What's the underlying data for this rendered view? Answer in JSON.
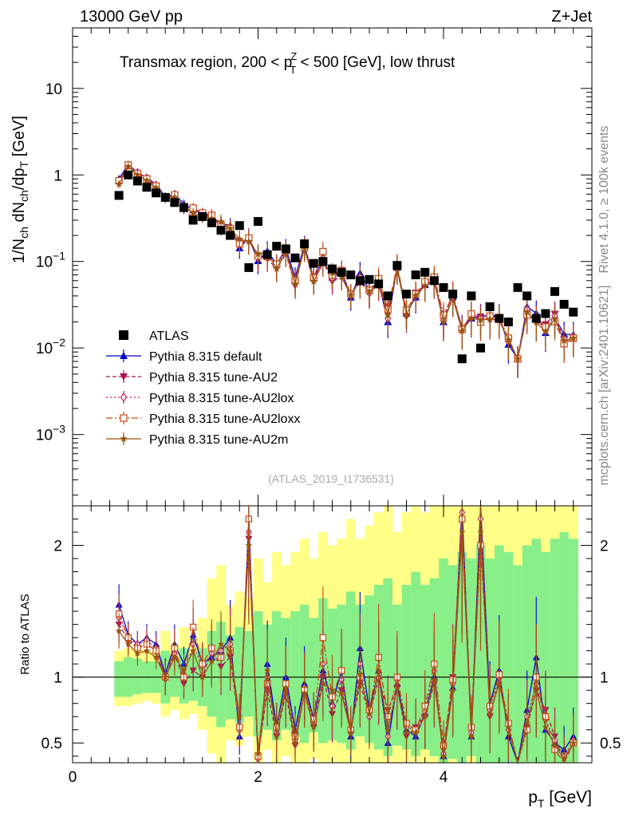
{
  "header": {
    "left": "13000 GeV pp",
    "right": "Z+Jet"
  },
  "side_labels": {
    "rivet": "Rivet 4.1.0, ≥ 100k events",
    "mcplots": "mcplots.cern.ch [arXiv:2401.10621]"
  },
  "chart_data": {
    "type": "line",
    "title": "Transmax region, 200 < pTZ < 500 [GeV], low thrust",
    "title_parts": {
      "pre": "Transmax region, 200 < p",
      "sup": "Z",
      "sub": "T",
      "post": " < 500 [GeV], low thrust"
    },
    "analysis_label": "(ATLAS_2019_I1736531)",
    "xlabel": "pT [GeV]",
    "xlabel_parts": {
      "main": "p",
      "sub": "T",
      "unit": " [GeV]"
    },
    "ylabel": "1/Nch dNch/dpT [GeV]",
    "ylabel_parts": {
      "a": "1/N",
      "a_sub": "ch",
      "b": " dN",
      "b_sub": "ch",
      "c": "/dp",
      "c_sub": "T",
      "unit": " [GeV]"
    },
    "ratio_ylabel": "Ratio to ATLAS",
    "xlim": [
      0,
      5.6
    ],
    "ylim": [
      0.00015,
      50
    ],
    "ratio_ylim": [
      0.35,
      2.3
    ],
    "xticks": [
      0,
      2,
      4
    ],
    "xtick_labels": [
      "0",
      "2",
      "4"
    ],
    "yticks_main": [
      {
        "value": 10,
        "label": "10",
        "exp": ""
      },
      {
        "value": 1,
        "label": "1",
        "exp": ""
      },
      {
        "value": 0.1,
        "label": "10",
        "exp": "−1"
      },
      {
        "value": 0.01,
        "label": "10",
        "exp": "−2"
      },
      {
        "value": 0.001,
        "label": "10",
        "exp": "−3"
      }
    ],
    "yticks_ratio": [
      {
        "value": 2,
        "label": "2"
      },
      {
        "value": 1,
        "label": "1"
      },
      {
        "value": 0.5,
        "label": "0.5"
      }
    ],
    "x": [
      0.5,
      0.6,
      0.7,
      0.8,
      0.9,
      1.0,
      1.1,
      1.2,
      1.3,
      1.4,
      1.5,
      1.6,
      1.7,
      1.8,
      1.9,
      2.0,
      2.1,
      2.2,
      2.3,
      2.4,
      2.5,
      2.6,
      2.7,
      2.8,
      2.9,
      3.0,
      3.1,
      3.2,
      3.3,
      3.4,
      3.5,
      3.6,
      3.7,
      3.8,
      3.9,
      4.0,
      4.1,
      4.2,
      4.3,
      4.4,
      4.5,
      4.6,
      4.7,
      4.8,
      4.9,
      5.0,
      5.1,
      5.2,
      5.3,
      5.4
    ],
    "data": {
      "name": "ATLAS",
      "values": [
        0.58,
        1.0,
        0.85,
        0.72,
        0.62,
        0.55,
        0.48,
        0.42,
        0.3,
        0.33,
        0.28,
        0.23,
        0.2,
        0.26,
        0.085,
        0.29,
        0.12,
        0.15,
        0.14,
        0.11,
        0.16,
        0.095,
        0.1,
        0.082,
        0.075,
        0.07,
        0.06,
        0.062,
        0.055,
        0.04,
        0.09,
        0.042,
        0.07,
        0.075,
        0.06,
        0.05,
        0.042,
        0.0075,
        0.04,
        0.01,
        0.03,
        0.022,
        0.02,
        0.05,
        0.04,
        0.022,
        0.025,
        0.045,
        0.032,
        0.026
      ]
    },
    "ratio_band": {
      "green_lo": [
        0.85,
        0.85,
        0.87,
        0.88,
        0.88,
        0.8,
        0.85,
        0.8,
        0.82,
        0.78,
        0.7,
        0.62,
        0.68,
        0.65,
        0.7,
        0.55,
        0.6,
        0.52,
        0.6,
        0.55,
        0.5,
        0.58,
        0.5,
        0.52,
        0.5,
        0.45,
        0.55,
        0.5,
        0.45,
        0.4,
        0.48,
        0.45,
        0.4,
        0.45,
        0.4,
        0.35,
        0.38,
        0.35,
        0.4,
        0.35,
        0.35,
        0.35,
        0.35,
        0.35,
        0.35,
        0.35,
        0.35,
        0.35,
        0.35,
        0.35
      ],
      "green_hi": [
        1.12,
        1.15,
        1.14,
        1.12,
        1.12,
        1.2,
        1.15,
        1.22,
        1.18,
        1.22,
        1.35,
        1.42,
        1.32,
        1.38,
        1.35,
        1.5,
        1.4,
        1.5,
        1.45,
        1.5,
        1.55,
        1.45,
        1.6,
        1.52,
        1.55,
        1.65,
        1.55,
        1.62,
        1.7,
        1.75,
        1.55,
        1.7,
        1.8,
        1.7,
        1.75,
        1.9,
        1.85,
        1.95,
        1.9,
        2.0,
        1.9,
        2.0,
        1.95,
        1.85,
        2.0,
        2.05,
        1.95,
        2.05,
        2.1,
        2.05
      ],
      "yellow_lo": [
        0.78,
        0.78,
        0.8,
        0.82,
        0.8,
        0.7,
        0.75,
        0.68,
        0.72,
        0.6,
        0.42,
        0.35,
        0.52,
        0.48,
        0.55,
        0.35,
        0.45,
        0.35,
        0.4,
        0.35,
        0.35,
        0.38,
        0.35,
        0.35,
        0.35,
        0.35,
        0.35,
        0.35,
        0.35,
        0.35,
        0.35,
        0.35,
        0.35,
        0.35,
        0.35,
        0.35,
        0.35,
        0.35,
        0.35,
        0.35,
        0.35,
        0.35,
        0.35,
        0.35,
        0.35,
        0.35,
        0.35,
        0.35,
        0.35,
        0.35
      ],
      "yellow_hi": [
        1.2,
        1.22,
        1.22,
        1.2,
        1.2,
        1.35,
        1.25,
        1.38,
        1.3,
        1.45,
        1.75,
        1.85,
        1.55,
        1.65,
        1.6,
        1.9,
        1.72,
        1.95,
        1.85,
        1.95,
        2.05,
        1.9,
        2.1,
        2.0,
        2.05,
        2.2,
        2.05,
        2.15,
        2.25,
        2.3,
        2.1,
        2.25,
        2.3,
        2.25,
        2.3,
        2.3,
        2.3,
        2.3,
        2.3,
        2.3,
        2.3,
        2.3,
        2.3,
        2.3,
        2.3,
        2.3,
        2.3,
        2.3,
        2.3,
        2.3
      ]
    },
    "series": [
      {
        "name": "Pythia 8.315 default",
        "color": "#0000cc",
        "marker": "triangle-up",
        "dash": "",
        "open": false,
        "ratio": [
          1.55,
          1.32,
          1.25,
          1.3,
          1.25,
          1.02,
          1.25,
          1.1,
          1.32,
          1.1,
          1.15,
          1.2,
          1.3,
          0.55,
          2.2,
          0.35,
          1.1,
          0.62,
          1.0,
          0.6,
          0.95,
          0.68,
          1.05,
          0.8,
          1.05,
          0.55,
          1.22,
          0.75,
          1.05,
          0.5,
          0.95,
          0.6,
          0.55,
          0.72,
          1.0,
          0.4,
          0.92,
          2.3,
          0.55,
          2.3,
          0.8,
          1.05,
          0.55,
          0.15,
          0.75,
          1.15,
          0.6,
          0.5,
          0.45,
          0.55
        ],
        "err": [
          0.1,
          0.08,
          0.08,
          0.08,
          0.08,
          0.12,
          0.12,
          0.12,
          0.15,
          0.15,
          0.18,
          0.2,
          0.22,
          0.25,
          0.3,
          0.3,
          0.3,
          0.3,
          0.3,
          0.3,
          0.3,
          0.3,
          0.3,
          0.3,
          0.3,
          0.3,
          0.35,
          0.35,
          0.35,
          0.35,
          0.35,
          0.35,
          0.35,
          0.35,
          0.35,
          0.4,
          0.4,
          0.4,
          0.4,
          0.4,
          0.4,
          0.4,
          0.4,
          0.4,
          0.4,
          0.4,
          0.4,
          0.4,
          0.4,
          0.4
        ]
      },
      {
        "name": "Pythia 8.315 tune-AU2",
        "color": "#aa1155",
        "marker": "triangle-down",
        "dash": "5,3",
        "open": false,
        "ratio": [
          1.4,
          1.28,
          1.22,
          1.25,
          1.2,
          0.98,
          1.2,
          0.95,
          1.05,
          1.0,
          1.2,
          1.08,
          1.15,
          0.62,
          2.05,
          0.4,
          0.9,
          0.55,
          0.88,
          0.48,
          0.9,
          0.62,
          1.0,
          0.72,
          0.9,
          0.6,
          0.95,
          0.72,
          0.98,
          0.75,
          0.92,
          0.55,
          0.62,
          0.7,
          0.95,
          0.45,
          1.0,
          2.2,
          0.6,
          2.3,
          0.7,
          0.98,
          0.62,
          0.15,
          0.62,
          0.9,
          0.75,
          0.55,
          0.35,
          0.5
        ],
        "err": [
          0.1,
          0.08,
          0.08,
          0.08,
          0.08,
          0.12,
          0.12,
          0.12,
          0.15,
          0.15,
          0.18,
          0.2,
          0.22,
          0.25,
          0.3,
          0.3,
          0.3,
          0.3,
          0.3,
          0.3,
          0.3,
          0.3,
          0.3,
          0.3,
          0.3,
          0.3,
          0.35,
          0.35,
          0.35,
          0.35,
          0.35,
          0.35,
          0.35,
          0.35,
          0.35,
          0.4,
          0.4,
          0.4,
          0.4,
          0.4,
          0.4,
          0.4,
          0.4,
          0.4,
          0.4,
          0.4,
          0.4,
          0.4,
          0.4,
          0.4
        ]
      },
      {
        "name": "Pythia 8.315 tune-AU2lox",
        "color": "#bb2266",
        "marker": "diamond-open",
        "dash": "2,3",
        "open": true,
        "ratio": [
          1.45,
          1.3,
          1.25,
          1.28,
          1.22,
          1.0,
          1.18,
          1.0,
          1.25,
          1.08,
          1.18,
          1.2,
          1.25,
          0.6,
          2.1,
          0.38,
          1.0,
          0.58,
          0.95,
          0.52,
          0.92,
          0.65,
          1.1,
          0.78,
          0.98,
          0.58,
          1.1,
          0.7,
          1.0,
          0.55,
          0.98,
          0.62,
          0.6,
          0.74,
          1.05,
          0.42,
          0.95,
          2.25,
          0.58,
          2.2,
          0.75,
          1.0,
          0.6,
          0.15,
          0.7,
          0.95,
          0.68,
          0.52,
          0.4,
          0.52
        ],
        "err": [
          0.1,
          0.08,
          0.08,
          0.08,
          0.08,
          0.12,
          0.12,
          0.12,
          0.15,
          0.15,
          0.18,
          0.2,
          0.22,
          0.25,
          0.3,
          0.3,
          0.3,
          0.3,
          0.3,
          0.3,
          0.3,
          0.3,
          0.3,
          0.3,
          0.3,
          0.3,
          0.35,
          0.35,
          0.35,
          0.35,
          0.35,
          0.35,
          0.35,
          0.35,
          0.35,
          0.4,
          0.4,
          0.4,
          0.4,
          0.4,
          0.4,
          0.4,
          0.4,
          0.4,
          0.4,
          0.4,
          0.4,
          0.4,
          0.4,
          0.4
        ]
      },
      {
        "name": "Pythia 8.315 tune-AU2loxx",
        "color": "#cc4411",
        "marker": "square-open",
        "dash": "8,3,2,3",
        "open": true,
        "ratio": [
          1.48,
          1.3,
          1.22,
          1.25,
          1.2,
          1.0,
          1.22,
          1.0,
          1.38,
          1.1,
          1.22,
          1.15,
          1.2,
          0.62,
          2.2,
          0.4,
          0.95,
          0.62,
          0.95,
          0.55,
          0.9,
          0.68,
          1.3,
          0.85,
          1.05,
          0.6,
          1.0,
          0.75,
          1.15,
          0.7,
          1.0,
          0.65,
          0.6,
          0.78,
          1.1,
          0.48,
          0.98,
          2.2,
          0.62,
          2.0,
          0.78,
          1.02,
          0.65,
          0.15,
          0.6,
          1.0,
          0.7,
          0.45,
          0.35,
          0.5
        ],
        "err": [
          0.1,
          0.08,
          0.08,
          0.08,
          0.08,
          0.12,
          0.12,
          0.12,
          0.15,
          0.15,
          0.18,
          0.2,
          0.22,
          0.25,
          0.3,
          0.3,
          0.3,
          0.3,
          0.3,
          0.3,
          0.3,
          0.3,
          0.3,
          0.3,
          0.3,
          0.3,
          0.35,
          0.35,
          0.35,
          0.35,
          0.35,
          0.35,
          0.35,
          0.35,
          0.35,
          0.4,
          0.4,
          0.4,
          0.4,
          0.4,
          0.4,
          0.4,
          0.4,
          0.4,
          0.4,
          0.4,
          0.4,
          0.4,
          0.4,
          0.4
        ]
      },
      {
        "name": "Pythia 8.315 tune-AU2m",
        "color": "#995511",
        "marker": "star",
        "dash": "",
        "open": false,
        "ratio": [
          1.35,
          1.25,
          1.18,
          1.2,
          1.15,
          1.0,
          1.15,
          1.05,
          1.2,
          1.0,
          1.12,
          1.25,
          1.2,
          0.7,
          2.0,
          0.42,
          1.05,
          0.55,
          0.92,
          0.5,
          0.88,
          0.62,
          0.95,
          0.9,
          0.88,
          0.58,
          1.02,
          0.72,
          1.05,
          0.6,
          0.92,
          0.58,
          0.58,
          0.7,
          0.98,
          0.4,
          0.9,
          2.1,
          0.55,
          2.1,
          0.72,
          0.95,
          0.62,
          0.15,
          0.65,
          0.9,
          0.62,
          0.48,
          0.38,
          0.5
        ],
        "err": [
          0.1,
          0.08,
          0.08,
          0.08,
          0.08,
          0.12,
          0.12,
          0.12,
          0.15,
          0.15,
          0.18,
          0.2,
          0.22,
          0.25,
          0.3,
          0.3,
          0.3,
          0.3,
          0.3,
          0.3,
          0.3,
          0.3,
          0.3,
          0.3,
          0.3,
          0.3,
          0.35,
          0.35,
          0.35,
          0.35,
          0.35,
          0.35,
          0.35,
          0.35,
          0.35,
          0.4,
          0.4,
          0.4,
          0.4,
          0.4,
          0.4,
          0.4,
          0.4,
          0.4,
          0.4,
          0.4,
          0.4,
          0.4,
          0.4,
          0.4
        ]
      }
    ],
    "legend": [
      "ATLAS",
      "Pythia 8.315 default",
      "Pythia 8.315 tune-AU2",
      "Pythia 8.315 tune-AU2lox",
      "Pythia 8.315 tune-AU2loxx",
      "Pythia 8.315 tune-AU2m"
    ],
    "legend_position": "bottom-left"
  }
}
